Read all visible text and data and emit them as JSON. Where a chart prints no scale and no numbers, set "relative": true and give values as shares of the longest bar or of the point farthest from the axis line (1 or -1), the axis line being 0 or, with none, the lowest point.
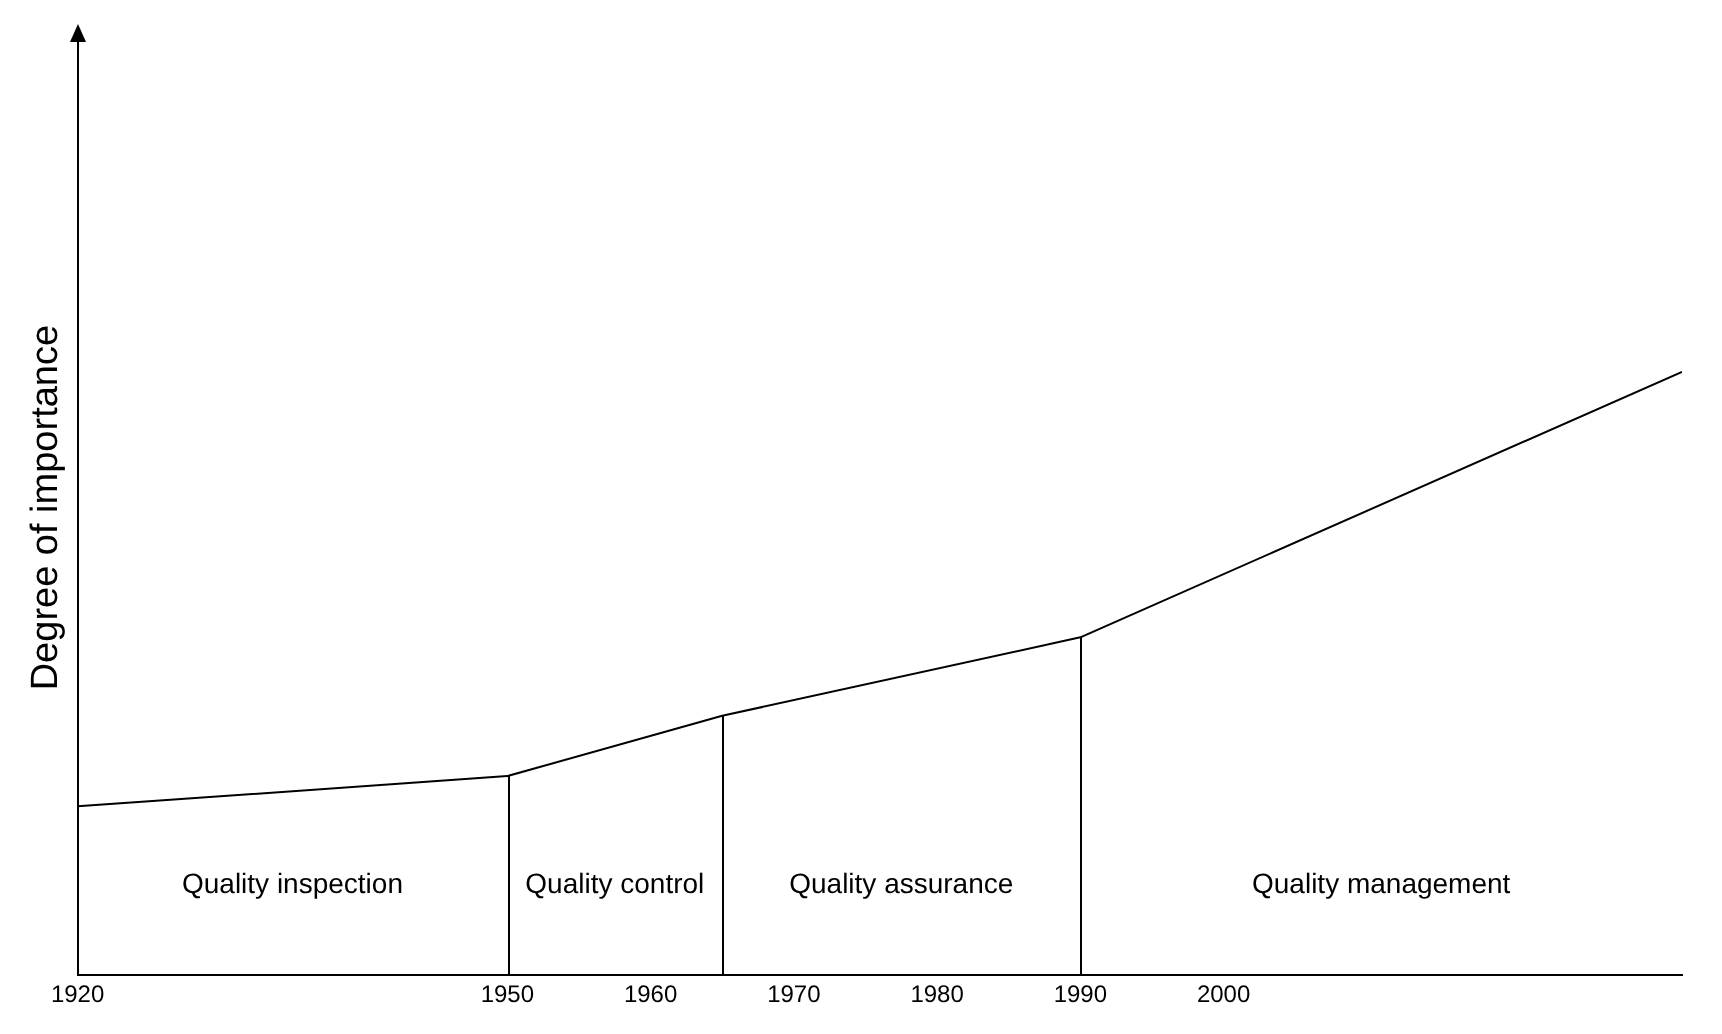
{
  "chart_data": {
    "type": "line",
    "relative": true,
    "ylabel": "Degree of importance",
    "x": [
      1920,
      1950,
      1965,
      1990,
      2032
    ],
    "series": [
      {
        "color": "#000000",
        "values": [
          0.28,
          0.33,
          0.43,
          0.56,
          1
        ]
      }
    ],
    "xlim": [
      1920,
      2032
    ],
    "xticks": [
      1920,
      1950,
      1960,
      1970,
      1980,
      1990,
      2000
    ],
    "ref_lines": [
      {
        "axis": "x",
        "value": 1950,
        "color": "#000000"
      },
      {
        "axis": "x",
        "value": 1965,
        "color": "#000000"
      },
      {
        "axis": "x",
        "value": 1990,
        "color": "#000000"
      }
    ],
    "annotations": [
      "Quality inspection",
      "Quality control",
      "Quality assurance",
      "Quality management"
    ],
    "grid": false,
    "legend": false,
    "marker": "none",
    "line_style": "solid"
  }
}
